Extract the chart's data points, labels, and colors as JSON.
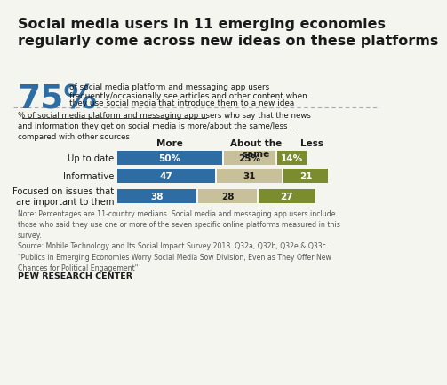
{
  "title": "Social media users in 11 emerging economies\nregularly come across new ideas on these platforms",
  "big_pct": "75%",
  "big_pct_text_line1": "of social media platform and messaging app users",
  "big_pct_text_line2": "frequently/occasionally see articles and other content when",
  "big_pct_text_line3": "they use social media that introduce them to a new idea",
  "subtitle": "% of social media platform and messaging app users who say that the news\nand information they get on social media is more/about the same/less __\ncompared with other sources",
  "col_headers": [
    "More",
    "About the\nsame",
    "Less"
  ],
  "categories": [
    "Up to date",
    "Informative",
    "Focused on issues that\nare important to them"
  ],
  "more_values": [
    50,
    47,
    38
  ],
  "same_values": [
    25,
    31,
    28
  ],
  "less_values": [
    14,
    21,
    27
  ],
  "more_labels": [
    "50%",
    "47",
    "38"
  ],
  "same_labels": [
    "25%",
    "31",
    "28"
  ],
  "less_labels": [
    "14%",
    "21",
    "27"
  ],
  "color_more": "#2e6da4",
  "color_same": "#c8c09a",
  "color_less": "#7b8c2e",
  "note": "Note: Percentages are 11-country medians. Social media and messaging app users include\nthose who said they use one or more of the seven specific online platforms measured in this\nsurvey.\nSource: Mobile Technology and Its Social Impact Survey 2018. Q32a, Q32b, Q32e & Q33c.\n\"Publics in Emerging Economies Worry Social Media Sow Division, Even as They Offer New\nChances for Political Engagement\"",
  "source_label": "PEW RESEARCH CENTER",
  "bg_color": "#f5f5f0",
  "title_color": "#1a1a1a",
  "note_color": "#555555",
  "big_pct_color": "#2e6da4",
  "underline_color": "#1a1a1a",
  "separator_color": "#aaaaaa"
}
